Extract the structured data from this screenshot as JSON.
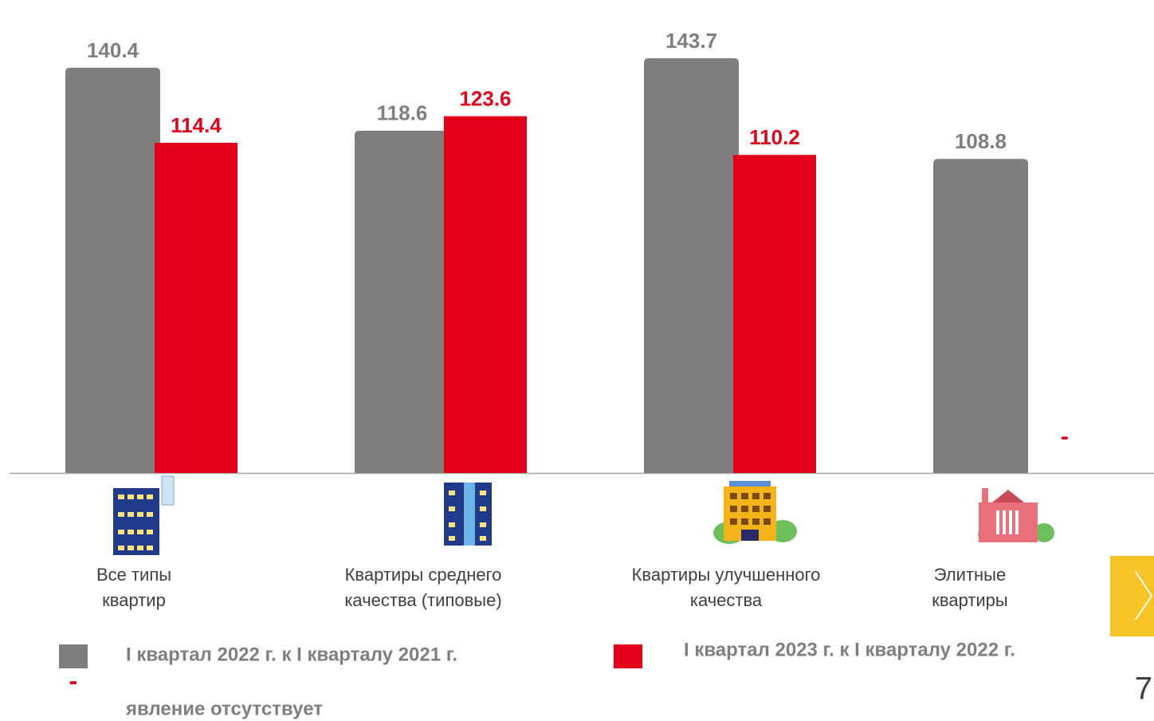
{
  "chart_data": {
    "type": "bar",
    "categories": [
      "Все типы квартир",
      "Квартиры среднего качества (типовые)",
      "Квартиры улучшенного качества",
      "Элитные квартиры"
    ],
    "series": [
      {
        "name": "I квартал 2022 г. к I кварталу 2021 г.",
        "color": "#7f7f7f",
        "values": [
          140.4,
          118.6,
          143.7,
          108.8
        ]
      },
      {
        "name": "I квартал 2023 г. к I кварталу 2022 г.",
        "color": "#e2001a",
        "values": [
          114.4,
          123.6,
          110.2,
          null
        ]
      }
    ],
    "ylim": [
      0,
      160
    ],
    "note": {
      "symbol": "-",
      "text": "явление отсутствует"
    }
  },
  "page_number": "7"
}
